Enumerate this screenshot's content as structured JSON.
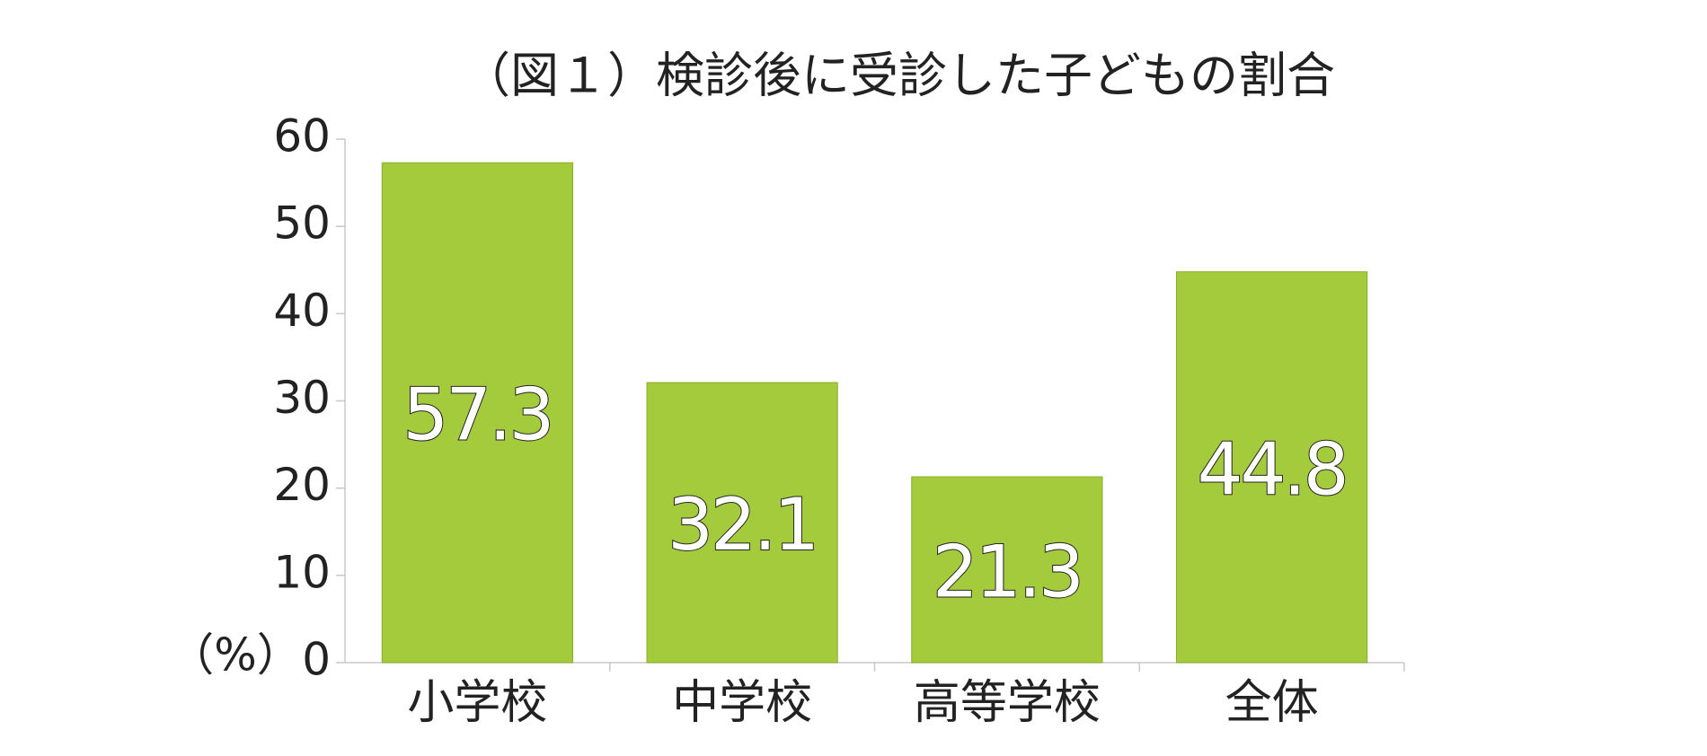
{
  "chart_data": {
    "type": "bar",
    "title": "（図１）検診後に受診した子どもの割合",
    "y_label": "（%）",
    "categories": [
      "小学校",
      "中学校",
      "高等学校",
      "全体"
    ],
    "values": [
      57.3,
      32.1,
      21.3,
      44.8
    ],
    "color": "#a3cb3c",
    "ylim": [
      0,
      60
    ],
    "yticks": [
      0,
      10,
      20,
      30,
      40,
      50,
      60
    ],
    "grid": false
  }
}
